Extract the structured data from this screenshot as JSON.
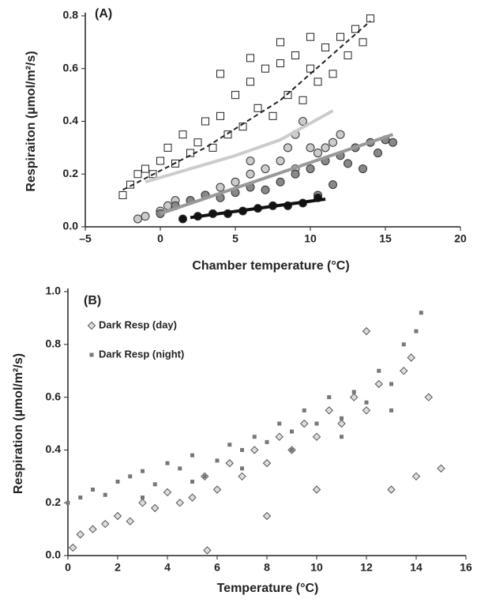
{
  "chart_data": [
    {
      "type": "scatter",
      "title": "(A)",
      "x_label": "Chamber temperature (°C)",
      "y_label": "Respiraiton (µmol/m²/s)",
      "xlim": [
        -5,
        20
      ],
      "xticks": [
        {
          "value": -5,
          "label": "–5"
        },
        0,
        5,
        10,
        15,
        20
      ],
      "ylim": [
        0,
        0.8
      ],
      "yticks": [
        {
          "value": 0,
          "label": "0.0"
        },
        0.2,
        0.4,
        0.6,
        0.8
      ],
      "series": [
        {
          "marker": "square",
          "color": "#ffffff",
          "x": [
            -2.5,
            -2,
            -1.5,
            -1,
            -0.5,
            0,
            0.5,
            1,
            1.5,
            2,
            2.5,
            3,
            3.5,
            4,
            4.5,
            5,
            5.5,
            6,
            6.5,
            7,
            7.5,
            8,
            8.5,
            9,
            9.5,
            10,
            10.5,
            11,
            11.5,
            12,
            12.5,
            13,
            13.5,
            14,
            4,
            6,
            8,
            10
          ],
          "values": [
            0.12,
            0.16,
            0.2,
            0.22,
            0.2,
            0.25,
            0.3,
            0.24,
            0.35,
            0.28,
            0.32,
            0.4,
            0.3,
            0.42,
            0.35,
            0.5,
            0.38,
            0.55,
            0.45,
            0.6,
            0.42,
            0.62,
            0.5,
            0.65,
            0.48,
            0.6,
            0.55,
            0.68,
            0.58,
            0.72,
            0.65,
            0.75,
            0.7,
            0.79,
            0.58,
            0.64,
            0.7,
            0.72
          ]
        },
        {
          "marker": "circle",
          "color": "#cccccc",
          "x": [
            -1.5,
            -1,
            0,
            0.5,
            1,
            2,
            3,
            4,
            5,
            6,
            7,
            8,
            8.5,
            9,
            9.5,
            10,
            10.5,
            11,
            11.5,
            12,
            6,
            9
          ],
          "values": [
            0.03,
            0.04,
            0.06,
            0.08,
            0.1,
            0.1,
            0.12,
            0.15,
            0.17,
            0.2,
            0.22,
            0.25,
            0.3,
            0.35,
            0.4,
            0.3,
            0.28,
            0.3,
            0.32,
            0.35,
            0.25,
            0.22
          ]
        },
        {
          "marker": "circle",
          "color": "#888888",
          "x": [
            0,
            1,
            2,
            3,
            4,
            5,
            6,
            7,
            8,
            9,
            10,
            11,
            12,
            12.5,
            13,
            13.5,
            14,
            14.5,
            15,
            15.5,
            10.5,
            11.5
          ],
          "values": [
            0.05,
            0.08,
            0.1,
            0.12,
            0.11,
            0.13,
            0.15,
            0.14,
            0.17,
            0.2,
            0.22,
            0.25,
            0.27,
            0.24,
            0.3,
            0.22,
            0.32,
            0.28,
            0.33,
            0.32,
            0.12,
            0.16
          ]
        },
        {
          "marker": "circle",
          "color": "#111111",
          "x": [
            1.5,
            2.5,
            3.5,
            4.5,
            5.5,
            6.5,
            7.5,
            8.5,
            9.5,
            10.5
          ],
          "values": [
            0.03,
            0.04,
            0.05,
            0.05,
            0.06,
            0.07,
            0.08,
            0.08,
            0.09,
            0.11
          ]
        },
        {
          "marker": "line",
          "color": "#cccccc",
          "x": [
            -1,
            2,
            5,
            8,
            11.5
          ],
          "values": [
            0.17,
            0.22,
            0.27,
            0.33,
            0.44
          ]
        },
        {
          "marker": "dashed",
          "color": "#222222",
          "x": [
            -2.5,
            3,
            8,
            14
          ],
          "values": [
            0.14,
            0.3,
            0.48,
            0.78
          ]
        },
        {
          "marker": "line",
          "color": "#999999",
          "x": [
            0,
            15.5
          ],
          "values": [
            0.05,
            0.35
          ]
        },
        {
          "marker": "line",
          "color": "#111111",
          "x": [
            2,
            11
          ],
          "values": [
            0.035,
            0.105
          ]
        }
      ]
    },
    {
      "type": "scatter",
      "title": "(B)",
      "x_label": "Temperature (°C)",
      "y_label": "Respiration (µmol/m²/s)",
      "xlim": [
        0,
        16
      ],
      "xticks": [
        0,
        2,
        4,
        6,
        8,
        10,
        12,
        14,
        16
      ],
      "ylim": [
        0,
        1
      ],
      "yticks": [
        {
          "value": 0,
          "label": "0.0"
        },
        0.2,
        0.4,
        0.6,
        0.8,
        {
          "value": 1,
          "label": "1.0"
        }
      ],
      "legend": "upper left",
      "series": [
        {
          "name": "Dark Resp (day)",
          "marker": "diamond",
          "color": "#dddddd",
          "x": [
            0.2,
            0.5,
            1,
            1.5,
            2,
            2.5,
            3,
            3.5,
            4,
            4.5,
            5,
            5.5,
            6,
            6.5,
            7,
            7.5,
            8,
            8.5,
            9,
            9.5,
            10,
            10.5,
            11,
            11.5,
            12,
            12.5,
            13,
            13.5,
            14,
            14.5,
            15,
            5.6,
            8,
            10,
            12,
            13.8
          ],
          "values": [
            0.03,
            0.08,
            0.1,
            0.12,
            0.15,
            0.13,
            0.2,
            0.18,
            0.24,
            0.2,
            0.22,
            0.3,
            0.25,
            0.35,
            0.3,
            0.4,
            0.35,
            0.45,
            0.4,
            0.5,
            0.45,
            0.55,
            0.5,
            0.6,
            0.55,
            0.65,
            0.25,
            0.7,
            0.3,
            0.6,
            0.33,
            0.02,
            0.15,
            0.25,
            0.85,
            0.75
          ]
        },
        {
          "name": "Dark Resp (night)",
          "marker": "smallsquare",
          "color": "#777777",
          "x": [
            0,
            0.5,
            1,
            1.5,
            2,
            2.5,
            3,
            3.5,
            4,
            4.5,
            5,
            5.5,
            6,
            6.5,
            7,
            7.5,
            8,
            8.5,
            9,
            9.5,
            10,
            10.5,
            11,
            11.5,
            12,
            12.5,
            13,
            13.5,
            14,
            3,
            5,
            7,
            9,
            11,
            13,
            14.2
          ],
          "values": [
            0.2,
            0.22,
            0.25,
            0.23,
            0.28,
            0.3,
            0.32,
            0.27,
            0.35,
            0.33,
            0.38,
            0.3,
            0.36,
            0.42,
            0.4,
            0.45,
            0.43,
            0.5,
            0.47,
            0.55,
            0.5,
            0.6,
            0.52,
            0.62,
            0.58,
            0.7,
            0.65,
            0.8,
            0.85,
            0.22,
            0.28,
            0.33,
            0.4,
            0.45,
            0.55,
            0.92
          ]
        }
      ]
    }
  ]
}
